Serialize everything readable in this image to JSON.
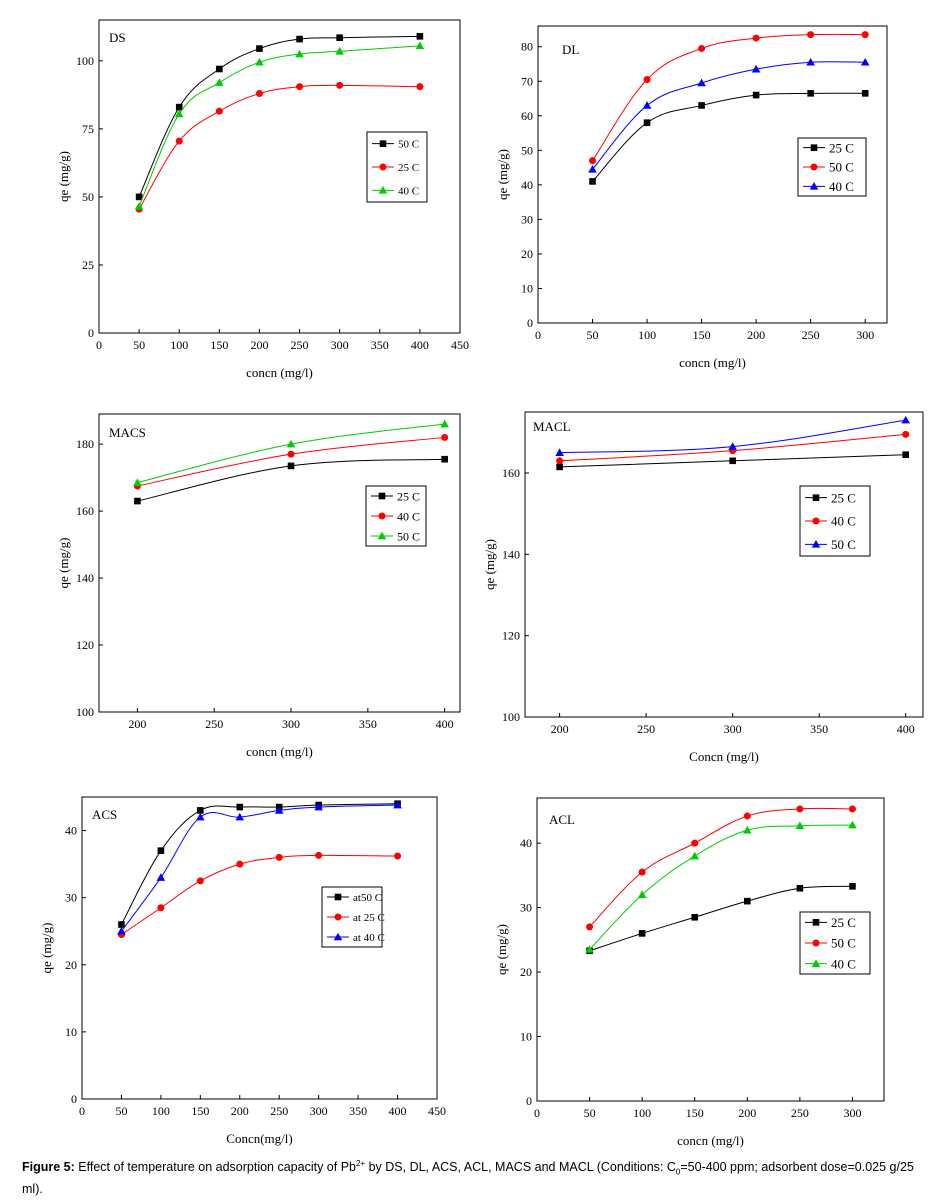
{
  "caption": {
    "label": "Figure 5:",
    "text_pre": "Effect of temperature on adsorption capacity of Pb",
    "superscript": "2+",
    "text_mid": " by DS, DL, ACS, ACL, MACS and MACL (Conditions: C",
    "subscript": "0",
    "text_post": "=50-400 ppm; adsorbent dose=0.025 g/25 ml)."
  },
  "colors": {
    "black": "#000000",
    "red": "#ff0000",
    "green": "#00cc00",
    "blue": "#0000ff"
  },
  "chart_data": [
    {
      "id": "DS",
      "type": "line",
      "title": "DS",
      "xlabel": "concn (mg/l)",
      "ylabel": "qe (mg/g)",
      "xlim": [
        0,
        450
      ],
      "ylim": [
        0,
        115
      ],
      "xticks": [
        0,
        50,
        100,
        150,
        200,
        250,
        300,
        350,
        400,
        450
      ],
      "yticks": [
        0,
        25,
        50,
        75,
        100
      ],
      "legend": "right",
      "series": [
        {
          "name": "50 C",
          "color": "black",
          "marker": "square",
          "x": [
            50,
            100,
            150,
            200,
            250,
            300,
            400
          ],
          "y": [
            50,
            83,
            97,
            104.5,
            108,
            108.5,
            109
          ]
        },
        {
          "name": "25 C",
          "color": "red",
          "marker": "circle",
          "x": [
            50,
            100,
            150,
            200,
            250,
            300,
            400
          ],
          "y": [
            45.5,
            70.5,
            81.5,
            88,
            90.5,
            91,
            90.5
          ]
        },
        {
          "name": "40 C",
          "color": "green",
          "marker": "triangle",
          "x": [
            50,
            100,
            150,
            200,
            250,
            300,
            400
          ],
          "y": [
            46.5,
            80.5,
            92,
            99.5,
            102.5,
            103.5,
            105.5
          ]
        }
      ]
    },
    {
      "id": "DL",
      "type": "line",
      "title": "DL",
      "xlabel": "concn (mg/l)",
      "ylabel": "qe (mg/g)",
      "xlim": [
        0,
        320
      ],
      "ylim": [
        0,
        86
      ],
      "xticks": [
        0,
        50,
        100,
        150,
        200,
        250,
        300
      ],
      "yticks": [
        0,
        10,
        20,
        30,
        40,
        50,
        60,
        70,
        80
      ],
      "legend": "right",
      "series": [
        {
          "name": "25 C",
          "color": "black",
          "marker": "square",
          "x": [
            50,
            100,
            150,
            200,
            250,
            300
          ],
          "y": [
            41,
            58,
            63,
            66,
            66.5,
            66.5
          ]
        },
        {
          "name": "50 C",
          "color": "red",
          "marker": "circle",
          "x": [
            50,
            100,
            150,
            200,
            250,
            300
          ],
          "y": [
            47,
            70.5,
            79.5,
            82.5,
            83.5,
            83.5
          ]
        },
        {
          "name": "40 C",
          "color": "blue",
          "marker": "triangle",
          "x": [
            50,
            100,
            150,
            200,
            250,
            300
          ],
          "y": [
            44.5,
            63,
            69.5,
            73.5,
            75.5,
            75.5
          ]
        }
      ]
    },
    {
      "id": "MACS",
      "type": "line",
      "title": "MACS",
      "xlabel": "concn (mg/l)",
      "ylabel": "qe (mg/g)",
      "xlim": [
        175,
        410
      ],
      "ylim": [
        100,
        189
      ],
      "xticks": [
        200,
        250,
        300,
        350,
        400
      ],
      "yticks": [
        100,
        120,
        140,
        160,
        180
      ],
      "legend": "right",
      "series": [
        {
          "name": "25 C",
          "color": "black",
          "marker": "square",
          "x": [
            200,
            300,
            400
          ],
          "y": [
            163,
            173.5,
            175.5
          ]
        },
        {
          "name": "40 C",
          "color": "red",
          "marker": "circle",
          "x": [
            200,
            300,
            400
          ],
          "y": [
            167.5,
            177,
            182
          ]
        },
        {
          "name": "50 C",
          "color": "green",
          "marker": "triangle",
          "x": [
            200,
            300,
            400
          ],
          "y": [
            168.5,
            180,
            186
          ]
        }
      ]
    },
    {
      "id": "MACL",
      "type": "line",
      "title": "MACL",
      "xlabel": "Concn (mg/l)",
      "ylabel": "qe (mg/g)",
      "xlim": [
        180,
        410
      ],
      "ylim": [
        100,
        175
      ],
      "xticks": [
        200,
        250,
        300,
        350,
        400
      ],
      "yticks": [
        100,
        120,
        140,
        160
      ],
      "legend": "right",
      "series": [
        {
          "name": "25 C",
          "color": "black",
          "marker": "square",
          "x": [
            200,
            300,
            400
          ],
          "y": [
            161.5,
            163,
            164.5
          ]
        },
        {
          "name": "40 C",
          "color": "red",
          "marker": "circle",
          "x": [
            200,
            300,
            400
          ],
          "y": [
            163,
            165.5,
            169.5
          ]
        },
        {
          "name": "50 C",
          "color": "blue",
          "marker": "triangle",
          "x": [
            200,
            300,
            400
          ],
          "y": [
            165,
            166.5,
            173
          ]
        }
      ]
    },
    {
      "id": "ACS",
      "type": "line",
      "title": "ACS",
      "xlabel": "Concn(mg/l)",
      "ylabel": "qe (mg/g)",
      "xlim": [
        0,
        450
      ],
      "ylim": [
        0,
        45
      ],
      "xticks": [
        0,
        50,
        100,
        150,
        200,
        250,
        300,
        350,
        400,
        450
      ],
      "yticks": [
        0,
        10,
        20,
        30,
        40
      ],
      "legend": "right",
      "series": [
        {
          "name": "at50 C",
          "color": "black",
          "marker": "square",
          "x": [
            50,
            100,
            150,
            200,
            250,
            300,
            400
          ],
          "y": [
            26,
            37,
            43,
            43.5,
            43.5,
            43.8,
            44
          ]
        },
        {
          "name": "at 25 C",
          "color": "red",
          "marker": "circle",
          "x": [
            50,
            100,
            150,
            200,
            250,
            300,
            400
          ],
          "y": [
            24.5,
            28.5,
            32.5,
            35,
            36,
            36.3,
            36.2
          ]
        },
        {
          "name": "at 40 C",
          "color": "blue",
          "marker": "triangle",
          "x": [
            50,
            100,
            150,
            200,
            250,
            300,
            400
          ],
          "y": [
            25,
            33,
            42,
            42,
            43,
            43.5,
            43.8
          ]
        }
      ]
    },
    {
      "id": "ACL",
      "type": "line",
      "title": "ACL",
      "xlabel": "concn (mg/l)",
      "ylabel": "qe (mg/g)",
      "xlim": [
        0,
        330
      ],
      "ylim": [
        0,
        47
      ],
      "xticks": [
        0,
        50,
        100,
        150,
        200,
        250,
        300
      ],
      "yticks": [
        0,
        10,
        20,
        30,
        40
      ],
      "legend": "right",
      "series": [
        {
          "name": "25 C",
          "color": "black",
          "marker": "square",
          "x": [
            50,
            100,
            150,
            200,
            250,
            300
          ],
          "y": [
            23.3,
            26,
            28.5,
            31,
            33,
            33.3
          ]
        },
        {
          "name": "50 C",
          "color": "red",
          "marker": "circle",
          "x": [
            50,
            100,
            150,
            200,
            250,
            300
          ],
          "y": [
            27,
            35.5,
            40,
            44.2,
            45.3,
            45.3
          ]
        },
        {
          "name": "40 C",
          "color": "green",
          "marker": "triangle",
          "x": [
            50,
            100,
            150,
            200,
            250,
            300
          ],
          "y": [
            23.5,
            32,
            38,
            42,
            42.7,
            42.8
          ]
        }
      ]
    }
  ]
}
